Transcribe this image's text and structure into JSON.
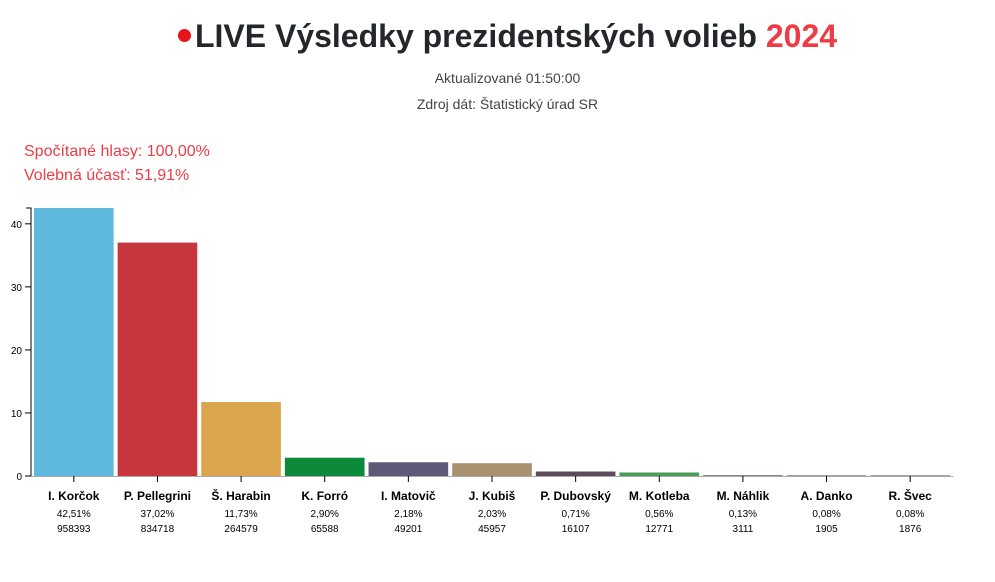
{
  "header": {
    "live_label": "LIVE",
    "title": "Výsledky prezidentských volieb",
    "year": "2024",
    "updated": "Aktualizované 01:50:00",
    "source": "Zdroj dát: Štatistický úrad SR",
    "live_dot_color": "#e8141c"
  },
  "stats": {
    "counted": "Spočítané hlasy: 100,00%",
    "turnout": "Volebná účasť: 51,91%"
  },
  "chart_data": {
    "type": "bar",
    "categories": [
      "I. Korčok",
      "P. Pellegrini",
      "Š. Harabin",
      "K. Forró",
      "I. Matovič",
      "J. Kubiš",
      "P. Dubovský",
      "M. Kotleba",
      "M. Náhlik",
      "A. Danko",
      "R. Švec"
    ],
    "values": [
      42.51,
      37.02,
      11.73,
      2.9,
      2.18,
      2.03,
      0.71,
      0.56,
      0.13,
      0.08,
      0.08
    ],
    "percent_labels": [
      "42,51%",
      "37,02%",
      "11,73%",
      "2,90%",
      "2,18%",
      "2,03%",
      "0,71%",
      "0,56%",
      "0,13%",
      "0,08%",
      "0,08%"
    ],
    "votes": [
      "958393",
      "834718",
      "264579",
      "65588",
      "49201",
      "45957",
      "16107",
      "12771",
      "3111",
      "1905",
      "1876"
    ],
    "colors": [
      "#5fb9dc",
      "#c6363c",
      "#dba54e",
      "#0c8a3a",
      "#5c5a78",
      "#a99170",
      "#5f4a5a",
      "#4a9a5a",
      "#7a8aa0",
      "#a0a0a0",
      "#a0a0a0"
    ],
    "yticks": [
      "0",
      "10",
      "20",
      "30",
      "40"
    ],
    "ylim": [
      0,
      42.51
    ],
    "grid": false,
    "xlabel": "",
    "ylabel": "",
    "title": ""
  }
}
